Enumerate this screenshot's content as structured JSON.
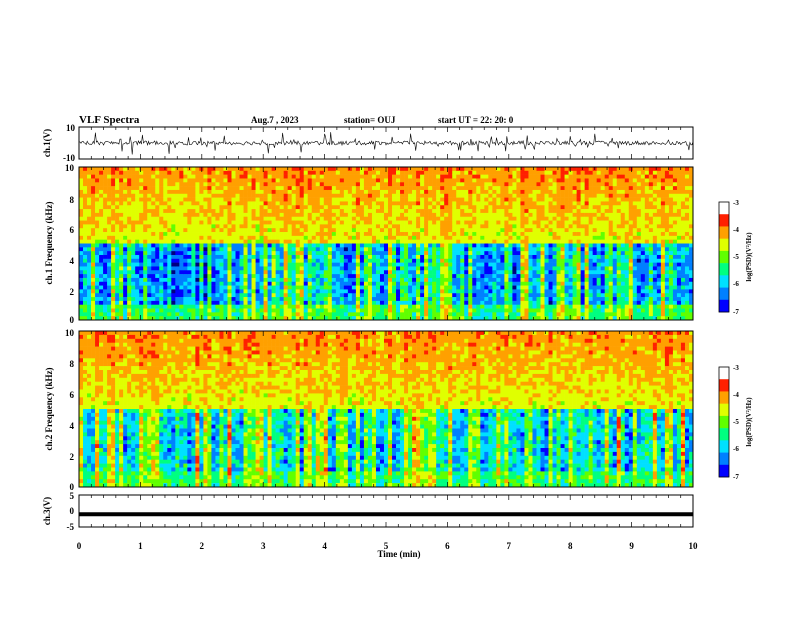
{
  "header": {
    "title": "VLF Spectra",
    "date": "Aug.7 , 2023",
    "station": "station= OUJ",
    "start": "start UT = 22: 20: 0"
  },
  "colors": {
    "spectrum": [
      "#000080",
      "#0000ff",
      "#0080ff",
      "#00e0ff",
      "#00ff80",
      "#60ff00",
      "#e0ff00",
      "#ffa000",
      "#ff2000",
      "#ffffff"
    ]
  },
  "chart_data": [
    {
      "type": "line",
      "name": "ch1-waveform",
      "ylabel": "ch.1(V)",
      "ylim": [
        -10,
        10
      ],
      "y_ticks": [
        "10",
        "-10"
      ],
      "baseline": 0,
      "description_values": "noisy signal centred near 0 V with spikes to about ±6 V"
    },
    {
      "type": "heatmap",
      "name": "ch1-spectrogram",
      "ylabel": "ch.1 Frequency (kHz)",
      "ylim": [
        0,
        10
      ],
      "y_ticks": [
        "0",
        "2",
        "4",
        "6",
        "8",
        "10"
      ],
      "colorbar": {
        "label": "log(PSD)(V²/Hz)",
        "range": [
          -7,
          -3
        ],
        "ticks": [
          "-3",
          "-4",
          "-5",
          "-6",
          "-7"
        ]
      }
    },
    {
      "type": "heatmap",
      "name": "ch2-spectrogram",
      "ylabel": "ch.2 Frequency (kHz)",
      "ylim": [
        0,
        10
      ],
      "y_ticks": [
        "0",
        "2",
        "4",
        "6",
        "8",
        "10"
      ],
      "colorbar": {
        "label": "log(PSD)(V²/Hz)",
        "range": [
          -7,
          -3
        ],
        "ticks": [
          "-3",
          "-4",
          "-5",
          "-6",
          "-7"
        ]
      }
    },
    {
      "type": "line",
      "name": "ch3-waveform",
      "ylabel": "ch.3(V)",
      "ylim": [
        -5,
        5
      ],
      "y_ticks": [
        "5",
        "0",
        "-5"
      ],
      "values_constant": -1
    }
  ],
  "x_axis": {
    "label": "Time (min)",
    "range": [
      0,
      10
    ],
    "ticks": [
      "0",
      "1",
      "2",
      "3",
      "4",
      "5",
      "6",
      "7",
      "8",
      "9",
      "10"
    ]
  }
}
